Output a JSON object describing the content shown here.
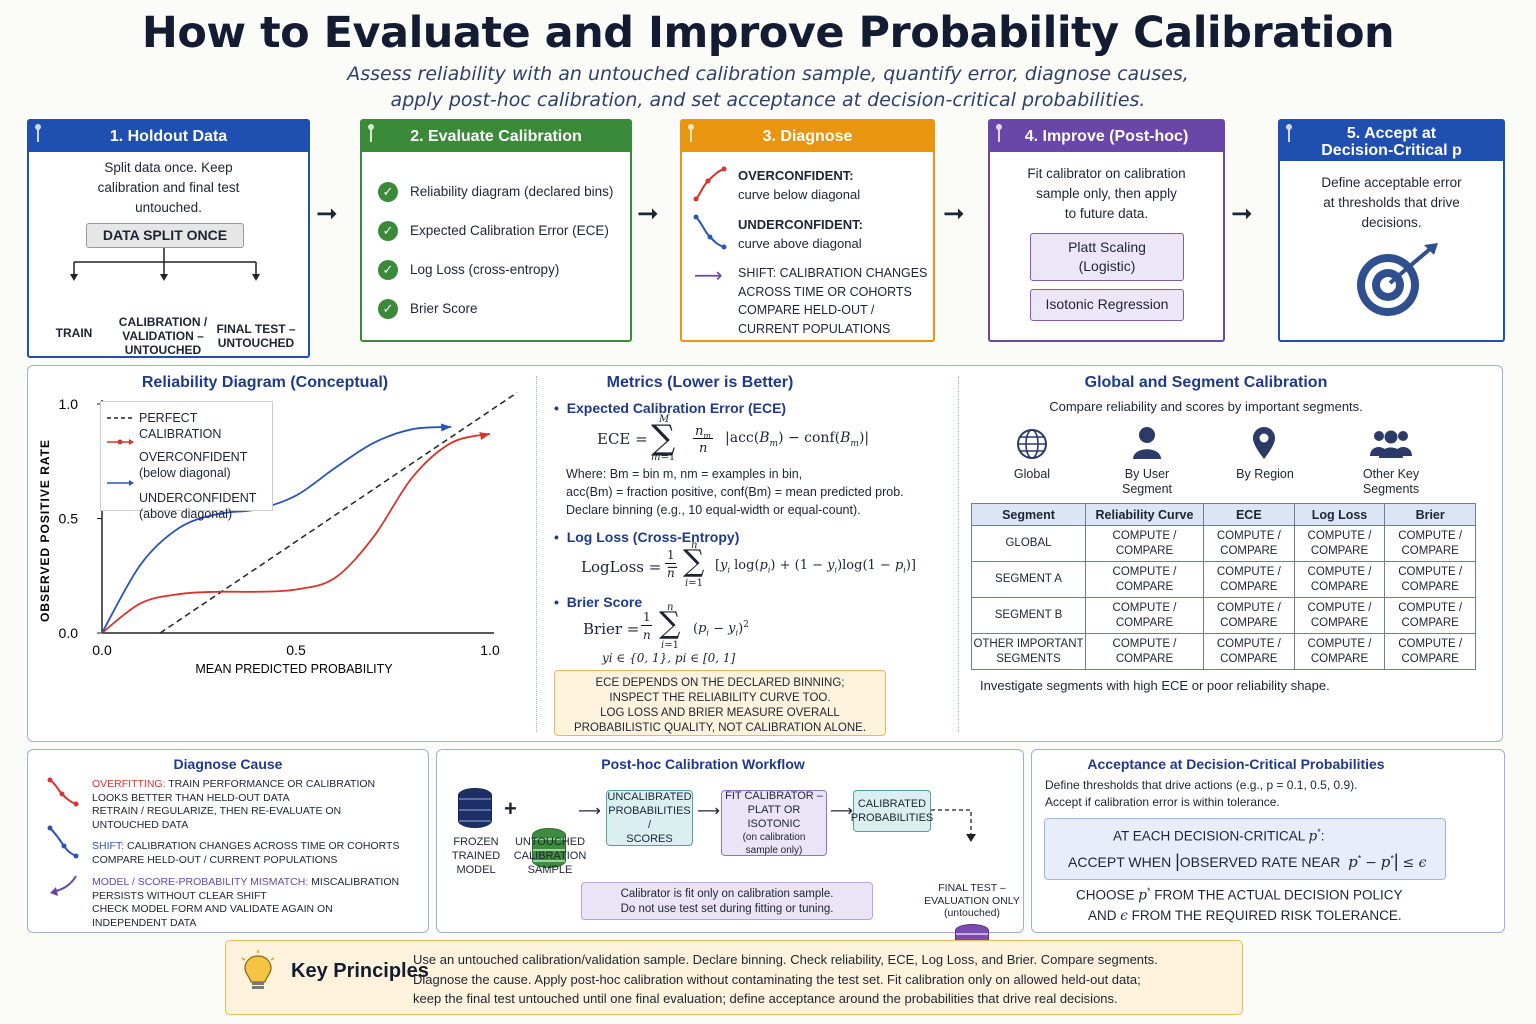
{
  "header": {
    "title": "How to Evaluate and Improve Probability Calibration",
    "subtitle_line1": "Assess reliability with an untouched calibration sample, quantify error, diagnose causes,",
    "subtitle_line2": "apply post-hoc calibration, and set acceptance at decision-critical probabilities."
  },
  "steps": {
    "s1": {
      "title": "1. Holdout Data",
      "desc_l1": "Split data once. Keep",
      "desc_l2": "calibration and final test",
      "desc_l3": "untouched.",
      "split_label": "DATA SPLIT ONCE",
      "train": "TRAIN",
      "calib_l1": "CALIBRATION /",
      "calib_l2": "VALIDATION –",
      "calib_l3": "UNTOUCHED",
      "final_l1": "FINAL TEST –",
      "final_l2": "UNTOUCHED"
    },
    "s2": {
      "title": "2. Evaluate Calibration",
      "items": [
        "Reliability diagram (declared bins)",
        "Expected Calibration Error (ECE)",
        "Log Loss (cross-entropy)",
        "Brier Score"
      ]
    },
    "s3": {
      "title": "3. Diagnose",
      "over_h": "OVERCONFIDENT:",
      "over_t": "curve below diagonal",
      "under_h": "UNDERCONFIDENT:",
      "under_t": "curve above diagonal",
      "shift_l1": "SHIFT: CALIBRATION CHANGES",
      "shift_l2": "ACROSS TIME OR COHORTS",
      "shift_l3": "COMPARE HELD-OUT /",
      "shift_l4": "CURRENT POPULATIONS"
    },
    "s4": {
      "title": "4. Improve (Post-hoc)",
      "desc_l1": "Fit calibrator on calibration",
      "desc_l2": "sample only, then apply",
      "desc_l3": "to future data.",
      "platt_l1": "Platt Scaling",
      "platt_l2": "(Logistic)",
      "iso": "Isotonic Regression"
    },
    "s5": {
      "title_l1": "5. Accept at",
      "title_l2": "Decision-Critical p",
      "desc_l1": "Define acceptable error",
      "desc_l2": "at thresholds that drive",
      "desc_l3": "decisions."
    }
  },
  "reliability": {
    "title": "Reliability Diagram (Conceptual)",
    "ylabel": "OBSERVED POSITIVE RATE",
    "xlabel": "MEAN PREDICTED PROBABILITY",
    "yticks": [
      "1.0",
      "0.5",
      "0.0"
    ],
    "xticks": [
      "0.0",
      "0.5",
      "1.0"
    ],
    "legend": {
      "perfect": "PERFECT CALIBRATION",
      "over_l1": "OVERCONFIDENT",
      "over_l2": "(below diagonal)",
      "under_l1": "UNDERCONFIDENT",
      "under_l2": "(above diagonal)"
    }
  },
  "chart_data": {
    "type": "line",
    "title": "Reliability Diagram (Conceptual)",
    "xlabel": "MEAN PREDICTED PROBABILITY",
    "ylabel": "OBSERVED POSITIVE RATE",
    "xlim": [
      0,
      1
    ],
    "ylim": [
      0,
      1
    ],
    "series": [
      {
        "name": "PERFECT CALIBRATION",
        "color": "#222222",
        "x": [
          0.15,
          1.07
        ],
        "y": [
          0.0,
          1.05
        ]
      },
      {
        "name": "OVERCONFIDENT",
        "color": "#d9342b",
        "x": [
          0.0,
          0.1,
          0.2,
          0.3,
          0.4,
          0.5,
          0.6,
          0.7,
          0.8,
          0.9,
          1.0
        ],
        "y": [
          0.0,
          0.13,
          0.17,
          0.18,
          0.18,
          0.19,
          0.24,
          0.42,
          0.68,
          0.83,
          0.87
        ]
      },
      {
        "name": "UNDERCONFIDENT",
        "color": "#2a55b8",
        "x": [
          0.0,
          0.1,
          0.2,
          0.3,
          0.4,
          0.5,
          0.6,
          0.7,
          0.8,
          0.9
        ],
        "y": [
          0.0,
          0.3,
          0.46,
          0.52,
          0.54,
          0.6,
          0.72,
          0.83,
          0.89,
          0.9
        ]
      }
    ]
  },
  "metrics": {
    "title": "Metrics (Lower is Better)",
    "ece_h": "Expected Calibration Error (ECE)",
    "ece_where_l1": "Where: Bm = bin m,  nm = examples in bin,",
    "ece_where_l2": "acc(Bm) = fraction positive, conf(Bm) = mean predicted prob.",
    "ece_where_l3": "Declare binning (e.g., 10 equal-width or equal-count).",
    "logloss_h": "Log Loss (Cross-Entropy)",
    "brier_h": "Brier Score",
    "brier_domain": "yi ∈ {0, 1},  pi ∈ [0, 1]",
    "note_l1": "ECE DEPENDS ON THE DECLARED BINNING;",
    "note_l2": "INSPECT THE RELIABILITY CURVE TOO.",
    "note_l3": "LOG LOSS AND BRIER MEASURE OVERALL",
    "note_l4": "PROBABILISTIC QUALITY, NOT CALIBRATION ALONE."
  },
  "segments": {
    "title": "Global and Segment Calibration",
    "desc": "Compare reliability and scores by important segments.",
    "icons": {
      "global": "Global",
      "user_l1": "By User",
      "user_l2": "Segment",
      "region": "By Region",
      "other_l1": "Other Key",
      "other_l2": "Segments"
    },
    "headers": [
      "Segment",
      "Reliability Curve",
      "ECE",
      "Log Loss",
      "Brier"
    ],
    "rows": [
      {
        "l1": "GLOBAL",
        "l2": ""
      },
      {
        "l1": "SEGMENT A",
        "l2": ""
      },
      {
        "l1": "SEGMENT B",
        "l2": ""
      },
      {
        "l1": "OTHER IMPORTANT",
        "l2": "SEGMENTS"
      }
    ],
    "cell_l1": "COMPUTE /",
    "cell_l2": "COMPARE",
    "footer": "Investigate segments with high ECE or poor reliability shape."
  },
  "diagnose_cause": {
    "title": "Diagnose Cause",
    "overfit_k": "OVERFITTING:",
    "overfit_l1": " TRAIN PERFORMANCE OR CALIBRATION",
    "overfit_l2": "LOOKS BETTER THAN HELD-OUT DATA",
    "overfit_l3": "RETRAIN / REGULARIZE, THEN RE-EVALUATE ON",
    "overfit_l4": "UNTOUCHED DATA",
    "shift_k": "SHIFT:",
    "shift_l1": " CALIBRATION CHANGES ACROSS TIME OR COHORTS",
    "shift_l2": "COMPARE HELD-OUT / CURRENT POPULATIONS",
    "model_k": "MODEL / SCORE-PROBABILITY MISMATCH:",
    "model_l1": " MISCALIBRATION",
    "model_l2": "PERSISTS WITHOUT CLEAR SHIFT",
    "model_l3": "CHECK MODEL FORM AND VALIDATE AGAIN ON",
    "model_l4": "INDEPENDENT DATA"
  },
  "workflow": {
    "title": "Post-hoc Calibration Workflow",
    "frozen_l1": "FROZEN",
    "frozen_l2": "TRAINED",
    "frozen_l3": "MODEL",
    "plus": "+",
    "untouched_l1": "UNTOUCHED",
    "untouched_l2": "CALIBRATION",
    "untouched_l3": "SAMPLE",
    "uncal_l1": "UNCALIBRATED",
    "uncal_l2": "PROBABILITIES /",
    "uncal_l3": "SCORES",
    "fit_l1": "FIT CALIBRATOR –",
    "fit_l2": "PLATT OR ISOTONIC",
    "fit_l3": "(on calibration",
    "fit_l4": "sample only)",
    "cal_l1": "CALIBRATED",
    "cal_l2": "PROBABILITIES",
    "final_l1": "FINAL TEST –",
    "final_l2": "EVALUATION ONLY",
    "final_l3": "(untouched)",
    "note_l1": "Calibrator is fit only on calibration sample.",
    "note_l2": "Do not use test set during fitting or tuning."
  },
  "acceptance": {
    "title": "Acceptance at Decision-Critical Probabilities",
    "desc_l1": "Define thresholds that drive actions (e.g., p = 0.1, 0.5, 0.9).",
    "desc_l2": "Accept if calibration error is within tolerance.",
    "box_l1": "AT EACH DECISION-CRITICAL",
    "box_l2": "ACCEPT WHEN",
    "box_l2b": "OBSERVED RATE NEAR",
    "choose_l1": "CHOOSE",
    "choose_l1b": "FROM THE ACTUAL DECISION POLICY",
    "choose_l2": "AND",
    "choose_l2b": "FROM THE REQUIRED RISK TOLERANCE."
  },
  "principles": {
    "title": "Key Principles",
    "l1": "Use an untouched calibration/validation sample. Declare binning. Check reliability, ECE, Log Loss, and Brier. Compare segments.",
    "l2": "Diagnose the cause. Apply post-hoc calibration without contaminating the test set. Fit calibration only on allowed held-out data;",
    "l3": "keep the final test untouched until one final evaluation; define acceptance around the probabilities that drive real decisions."
  },
  "colors": {
    "blue": "#1f4fb0",
    "green": "#3a8a3a",
    "orange": "#e9950f",
    "purple": "#6a46a8",
    "navy": "#1f3a8a",
    "red": "#d9342b"
  }
}
